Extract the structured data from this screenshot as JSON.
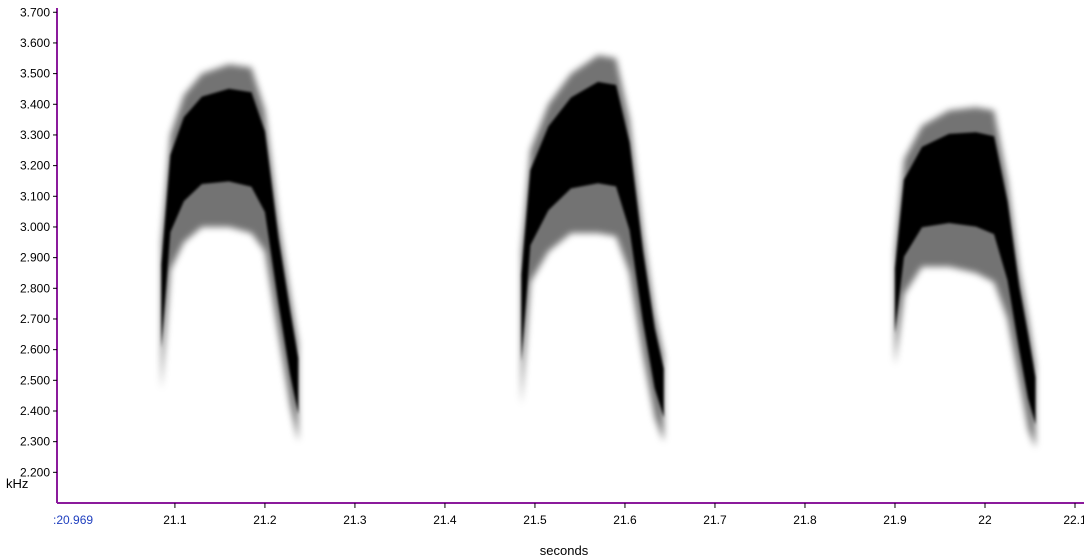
{
  "chart_data": {
    "type": "heatmap",
    "title": "",
    "xlabel": "seconds",
    "ylabel": "kHz",
    "xlim": [
      20.969,
      22.11
    ],
    "ylim": [
      2.1,
      3.74
    ],
    "x_start_label": ":20.969",
    "x_ticks": [
      "21.1",
      "21.2",
      "21.3",
      "21.4",
      "21.5",
      "21.6",
      "21.7",
      "21.8",
      "21.9",
      "22",
      "22.1"
    ],
    "x_tick_values": [
      21.1,
      21.2,
      21.3,
      21.4,
      21.5,
      21.6,
      21.7,
      21.8,
      21.9,
      22.0,
      22.1
    ],
    "y_ticks": [
      "2.200",
      "2.300",
      "2.400",
      "2.500",
      "2.600",
      "2.700",
      "2.800",
      "2.900",
      "3.000",
      "3.100",
      "3.200",
      "3.300",
      "3.400",
      "3.500",
      "3.600",
      "3.700"
    ],
    "y_tick_values": [
      2.2,
      2.3,
      2.4,
      2.5,
      2.6,
      2.7,
      2.8,
      2.9,
      3.0,
      3.1,
      3.2,
      3.3,
      3.4,
      3.5,
      3.6,
      3.7
    ],
    "grid": false,
    "axis_color": "#8b1a9c",
    "intensity_color": "#000000",
    "calls": [
      {
        "points": [
          {
            "t": 21.085,
            "lo": 2.47,
            "hi": 2.95
          },
          {
            "t": 21.095,
            "lo": 2.86,
            "hi": 3.3
          },
          {
            "t": 21.11,
            "lo": 2.95,
            "hi": 3.43
          },
          {
            "t": 21.13,
            "lo": 3.0,
            "hi": 3.5
          },
          {
            "t": 21.16,
            "lo": 3.0,
            "hi": 3.53
          },
          {
            "t": 21.185,
            "lo": 2.98,
            "hi": 3.52
          },
          {
            "t": 21.2,
            "lo": 2.92,
            "hi": 3.38
          },
          {
            "t": 21.215,
            "lo": 2.65,
            "hi": 3.02
          },
          {
            "t": 21.228,
            "lo": 2.42,
            "hi": 2.78
          },
          {
            "t": 21.237,
            "lo": 2.3,
            "hi": 2.62
          }
        ]
      },
      {
        "points": [
          {
            "t": 21.485,
            "lo": 2.42,
            "hi": 2.92
          },
          {
            "t": 21.495,
            "lo": 2.82,
            "hi": 3.25
          },
          {
            "t": 21.515,
            "lo": 2.92,
            "hi": 3.4
          },
          {
            "t": 21.54,
            "lo": 2.98,
            "hi": 3.5
          },
          {
            "t": 21.57,
            "lo": 2.98,
            "hi": 3.56
          },
          {
            "t": 21.59,
            "lo": 2.97,
            "hi": 3.55
          },
          {
            "t": 21.605,
            "lo": 2.85,
            "hi": 3.35
          },
          {
            "t": 21.62,
            "lo": 2.58,
            "hi": 2.98
          },
          {
            "t": 21.633,
            "lo": 2.38,
            "hi": 2.72
          },
          {
            "t": 21.643,
            "lo": 2.3,
            "hi": 2.58
          }
        ]
      },
      {
        "points": [
          {
            "t": 21.9,
            "lo": 2.55,
            "hi": 2.92
          },
          {
            "t": 21.91,
            "lo": 2.78,
            "hi": 3.22
          },
          {
            "t": 21.93,
            "lo": 2.87,
            "hi": 3.33
          },
          {
            "t": 21.96,
            "lo": 2.87,
            "hi": 3.38
          },
          {
            "t": 21.99,
            "lo": 2.85,
            "hi": 3.39
          },
          {
            "t": 22.01,
            "lo": 2.82,
            "hi": 3.38
          },
          {
            "t": 22.025,
            "lo": 2.7,
            "hi": 3.15
          },
          {
            "t": 22.038,
            "lo": 2.5,
            "hi": 2.86
          },
          {
            "t": 22.048,
            "lo": 2.34,
            "hi": 2.7
          },
          {
            "t": 22.056,
            "lo": 2.28,
            "hi": 2.55
          }
        ]
      }
    ]
  }
}
